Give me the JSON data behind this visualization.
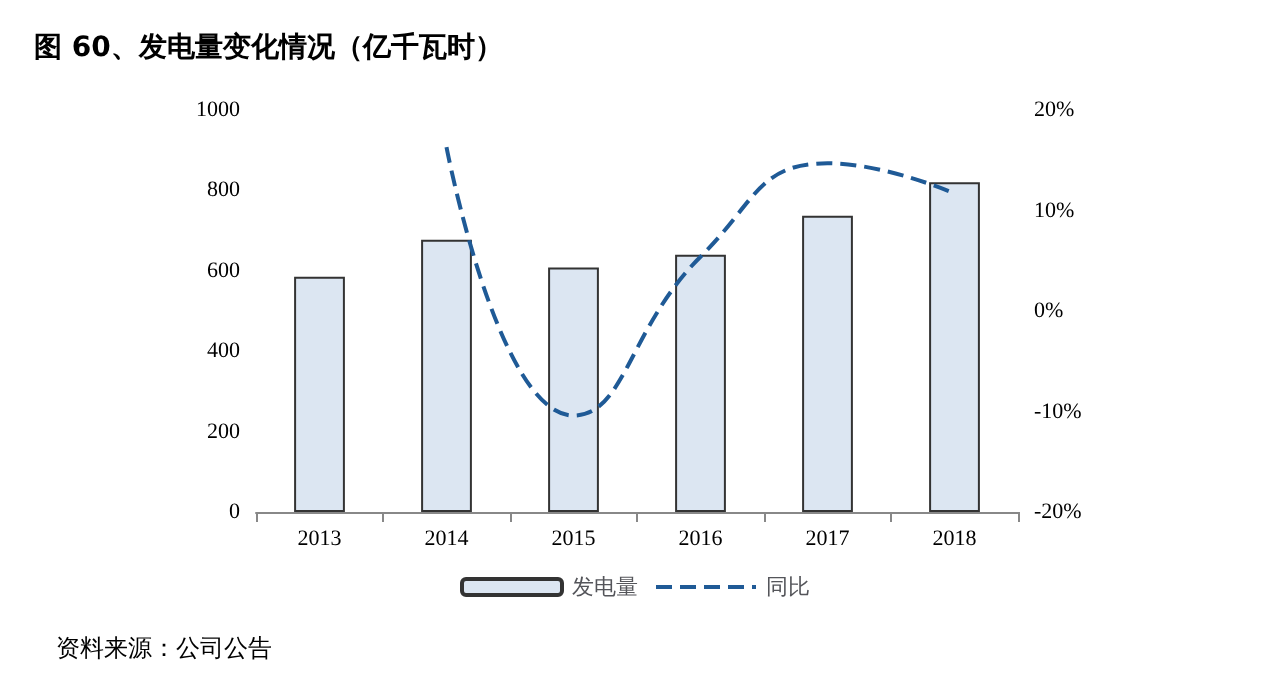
{
  "chart_data": {
    "type": "bar",
    "title": "图 60、发电量变化情况（亿千瓦时）",
    "categories": [
      "2013",
      "2014",
      "2015",
      "2016",
      "2017",
      "2018"
    ],
    "series": [
      {
        "name": "发电量",
        "color": "#dce6f2",
        "values": [
          585,
          677,
          608,
          640,
          737,
          820
        ]
      },
      {
        "name": "同比",
        "type": "line",
        "axis": "y2",
        "color": "#1f5a96",
        "line_style": "dashed",
        "marker": "none",
        "values": [
          null,
          16.3,
          -10.4,
          5.4,
          14.7,
          11.7
        ]
      }
    ],
    "ylim": [
      0,
      1000
    ],
    "yticks": [
      0,
      200,
      400,
      600,
      800,
      1000
    ],
    "y2lim": [
      -20,
      20
    ],
    "y2ticks": [
      {
        "value": -20,
        "label": "-20%"
      },
      {
        "value": -10,
        "label": "-10%"
      },
      {
        "value": 0,
        "label": "0%"
      },
      {
        "value": 10,
        "label": "10%"
      },
      {
        "value": 20,
        "label": "20%"
      }
    ],
    "grid": false,
    "legend": "bottom",
    "annotations": [
      "资料来源：公司公告"
    ]
  }
}
